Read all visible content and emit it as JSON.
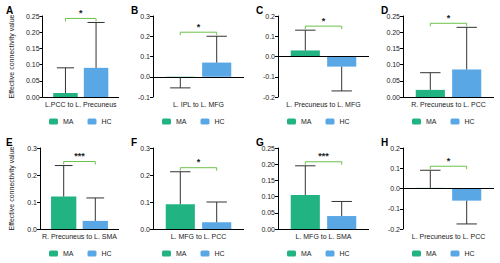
{
  "chart_data": [
    {
      "type": "bar",
      "title": "A",
      "y_label": "Effective connectivity value",
      "categories": [
        "L.PCC to L. Precuneus"
      ],
      "series": [
        {
          "name": "MA",
          "color": "#22b383",
          "values": [
            0.012
          ],
          "errors": [
            0.078
          ]
        },
        {
          "name": "HC",
          "color": "#5aa7e6",
          "values": [
            0.09
          ],
          "errors": [
            0.14
          ]
        }
      ],
      "ylim": [
        0,
        0.25
      ],
      "yticks": [
        {
          "value": 0,
          "label": "0.00"
        },
        0.05,
        {
          "value": 0.1,
          "label": "0.10"
        },
        0.15,
        {
          "value": 0.2,
          "label": "0.20"
        },
        0.25
      ],
      "annotation": "*",
      "grid": false,
      "legend": "bottom"
    },
    {
      "type": "bar",
      "title": "B",
      "categories": [
        "L. IPL to L. MFG"
      ],
      "series": [
        {
          "name": "MA",
          "color": "#22b383",
          "values": [
            -0.003
          ],
          "errors": [
            0.052
          ]
        },
        {
          "name": "HC",
          "color": "#5aa7e6",
          "values": [
            0.07
          ],
          "errors": [
            0.13
          ]
        }
      ],
      "ylim": [
        -0.1,
        0.3
      ],
      "yticks": [
        -0.1,
        {
          "value": 0,
          "label": "0.0"
        },
        0.1,
        0.2,
        0.3
      ],
      "annotation": "*",
      "grid": false,
      "legend": "bottom"
    },
    {
      "type": "bar",
      "title": "C",
      "categories": [
        "L. Precuneus to L. MFG"
      ],
      "series": [
        {
          "name": "MA",
          "color": "#22b383",
          "values": [
            0.03
          ],
          "errors": [
            0.1
          ]
        },
        {
          "name": "HC",
          "color": "#5aa7e6",
          "values": [
            -0.05
          ],
          "errors": [
            0.12
          ]
        }
      ],
      "ylim": [
        -0.2,
        0.2
      ],
      "yticks": [
        -0.2,
        -0.1,
        {
          "value": 0,
          "label": "0.0"
        },
        0.1,
        0.2
      ],
      "annotation": "*",
      "grid": false,
      "legend": "bottom"
    },
    {
      "type": "bar",
      "title": "D",
      "categories": [
        "R. Precuneus to L. PCC"
      ],
      "series": [
        {
          "name": "MA",
          "color": "#22b383",
          "values": [
            0.022
          ],
          "errors": [
            0.053
          ]
        },
        {
          "name": "HC",
          "color": "#5aa7e6",
          "values": [
            0.085
          ],
          "errors": [
            0.13
          ]
        }
      ],
      "ylim": [
        0,
        0.25
      ],
      "yticks": [
        {
          "value": 0,
          "label": "0.00"
        },
        0.05,
        {
          "value": 0.1,
          "label": "0.10"
        },
        0.15,
        {
          "value": 0.2,
          "label": "0.20"
        },
        0.25
      ],
      "annotation": "*",
      "grid": false,
      "legend": "bottom"
    },
    {
      "type": "bar",
      "title": "E",
      "y_label": "Effective connectivity value",
      "categories": [
        "R. Precuneus to L. SMA"
      ],
      "series": [
        {
          "name": "MA",
          "color": "#22b383",
          "values": [
            0.12
          ],
          "errors": [
            0.115
          ]
        },
        {
          "name": "HC",
          "color": "#5aa7e6",
          "values": [
            0.03
          ],
          "errors": [
            0.085
          ]
        }
      ],
      "ylim": [
        0,
        0.3
      ],
      "yticks": [
        {
          "value": 0,
          "label": "0.0"
        },
        0.1,
        0.2,
        0.3
      ],
      "annotation": "***",
      "grid": false,
      "legend": "bottom"
    },
    {
      "type": "bar",
      "title": "F",
      "categories": [
        "L. MFG to L. PCC"
      ],
      "series": [
        {
          "name": "MA",
          "color": "#22b383",
          "values": [
            0.092
          ],
          "errors": [
            0.12
          ]
        },
        {
          "name": "HC",
          "color": "#5aa7e6",
          "values": [
            0.025
          ],
          "errors": [
            0.075
          ]
        }
      ],
      "ylim": [
        0,
        0.3
      ],
      "yticks": [
        {
          "value": 0,
          "label": "0.0"
        },
        0.1,
        0.2,
        0.3
      ],
      "annotation": "*",
      "grid": false,
      "legend": "bottom"
    },
    {
      "type": "bar",
      "title": "G",
      "categories": [
        "L. MFG to L. SMA"
      ],
      "series": [
        {
          "name": "MA",
          "color": "#22b383",
          "values": [
            0.105
          ],
          "errors": [
            0.09
          ]
        },
        {
          "name": "HC",
          "color": "#5aa7e6",
          "values": [
            0.04
          ],
          "errors": [
            0.045
          ]
        }
      ],
      "ylim": [
        0,
        0.25
      ],
      "yticks": [
        {
          "value": 0,
          "label": "0.00"
        },
        0.05,
        {
          "value": 0.1,
          "label": "0.10"
        },
        0.15,
        {
          "value": 0.2,
          "label": "0.20"
        },
        0.25
      ],
      "annotation": "***",
      "grid": false,
      "legend": "bottom"
    },
    {
      "type": "bar",
      "title": "H",
      "categories": [
        "L. Precuneus to L. PCC"
      ],
      "series": [
        {
          "name": "MA",
          "color": "#22b383",
          "values": [
            0.003
          ],
          "errors": [
            0.087
          ]
        },
        {
          "name": "HC",
          "color": "#5aa7e6",
          "values": [
            -0.06
          ],
          "errors": [
            0.115
          ]
        }
      ],
      "ylim": [
        -0.2,
        0.2
      ],
      "yticks": [
        -0.2,
        -0.1,
        {
          "value": 0,
          "label": "0.0"
        },
        0.1,
        0.2
      ],
      "annotation": "*",
      "grid": false,
      "legend": "bottom"
    }
  ]
}
